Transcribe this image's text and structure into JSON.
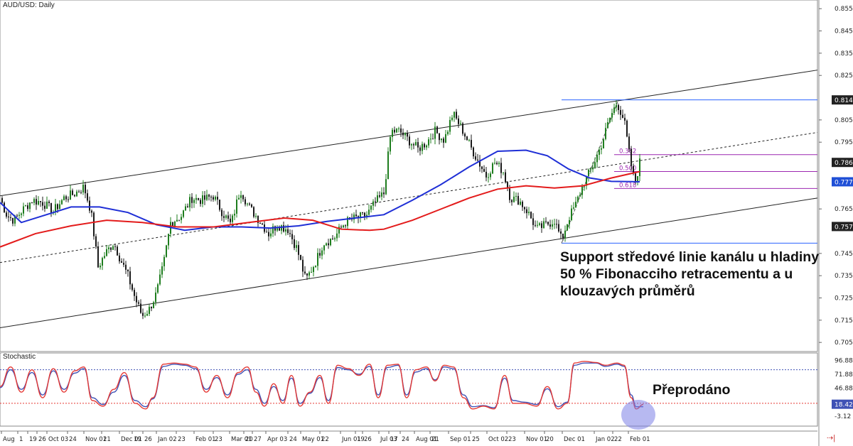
{
  "chart_data": {
    "type": "candlestick",
    "title": "AUD/USD: Daily",
    "symbol": "AUD/USD",
    "timeframe": "Daily",
    "price_axis": {
      "ticks": [
        "0.8551",
        "0.8451",
        "0.8351",
        "0.8251",
        "0.8051",
        "0.7951",
        "0.7651",
        "0.7451",
        "0.7351",
        "0.7251",
        "0.7151",
        "0.7051"
      ],
      "labels": [
        {
          "text": "0.8141",
          "style": "dark"
        },
        {
          "text": "0.7860",
          "style": "dark"
        },
        {
          "text": "0.7773",
          "style": "blue"
        },
        {
          "text": "0.7572",
          "style": "dark"
        }
      ]
    },
    "time_axis": [
      "Aug",
      "1",
      "19",
      "26",
      "Oct 03",
      "24",
      "Nov 01",
      "21",
      "Dec 01",
      "19",
      "26",
      "Jan 02",
      "23",
      "Feb 01",
      "23",
      "Mar 01",
      "20",
      "27",
      "Apr 03",
      "24",
      "May 01",
      "22",
      "Jun 01",
      "19",
      "26",
      "Jul 03",
      "17",
      "24",
      "Aug 01",
      "21",
      "Sep 01",
      "25",
      "Oct 02",
      "23",
      "Nov 01",
      "20",
      "Dec 01",
      "Jan 02",
      "22",
      "Feb 01"
    ],
    "channel": {
      "upper": [
        [
          0,
          0.771
        ],
        [
          1150,
          0.8275
        ]
      ],
      "middle": [
        [
          0,
          0.741
        ],
        [
          1150,
          0.7995
        ]
      ],
      "lower": [
        [
          0,
          0.7117
        ],
        [
          1150,
          0.77
        ]
      ]
    },
    "horizontal_lines": [
      {
        "from_index": 790,
        "to_index": 1150,
        "price": 0.8141,
        "color": "#2962ff"
      },
      {
        "from_index": 790,
        "to_index": 1150,
        "price": 0.7497,
        "color": "#2962ff"
      }
    ],
    "fibonacci": {
      "swing_low": {
        "index": 790,
        "price": 0.7497
      },
      "swing_high": {
        "index": 870,
        "price": 0.8141
      },
      "levels": [
        {
          "label": "0.382",
          "price": 0.7895
        },
        {
          "label": "0.500",
          "price": 0.7819
        },
        {
          "label": "0.618",
          "price": 0.7743
        }
      ]
    },
    "moving_averages": [
      {
        "color": "#1f2fd6",
        "points": [
          [
            0,
            0.768
          ],
          [
            30,
            0.759
          ],
          [
            60,
            0.762
          ],
          [
            100,
            0.766
          ],
          [
            140,
            0.766
          ],
          [
            180,
            0.7635
          ],
          [
            220,
            0.758
          ],
          [
            260,
            0.7555
          ],
          [
            300,
            0.757
          ],
          [
            340,
            0.757
          ],
          [
            380,
            0.7565
          ],
          [
            420,
            0.7575
          ],
          [
            460,
            0.7595
          ],
          [
            500,
            0.761
          ],
          [
            540,
            0.7625
          ],
          [
            580,
            0.769
          ],
          [
            620,
            0.776
          ],
          [
            660,
            0.784
          ],
          [
            700,
            0.791
          ],
          [
            740,
            0.7915
          ],
          [
            770,
            0.789
          ],
          [
            800,
            0.783
          ],
          [
            830,
            0.779
          ],
          [
            860,
            0.7775
          ],
          [
            900,
            0.7773
          ]
        ]
      },
      {
        "color": "#e31b1b",
        "points": [
          [
            0,
            0.748
          ],
          [
            50,
            0.754
          ],
          [
            100,
            0.7575
          ],
          [
            150,
            0.76
          ],
          [
            200,
            0.759
          ],
          [
            250,
            0.757
          ],
          [
            300,
            0.757
          ],
          [
            350,
            0.759
          ],
          [
            400,
            0.761
          ],
          [
            440,
            0.76
          ],
          [
            480,
            0.756
          ],
          [
            520,
            0.7555
          ],
          [
            540,
            0.756
          ],
          [
            580,
            0.76
          ],
          [
            620,
            0.765
          ],
          [
            660,
            0.77
          ],
          [
            700,
            0.774
          ],
          [
            740,
            0.7755
          ],
          [
            780,
            0.7745
          ],
          [
            820,
            0.7755
          ],
          [
            860,
            0.779
          ],
          [
            900,
            0.7819
          ]
        ]
      }
    ],
    "candles": [
      [
        0,
        0.77
      ],
      [
        10,
        0.762
      ],
      [
        20,
        0.76
      ],
      [
        30,
        0.764
      ],
      [
        45,
        0.769
      ],
      [
        60,
        0.768
      ],
      [
        75,
        0.764
      ],
      [
        90,
        0.77
      ],
      [
        105,
        0.772
      ],
      [
        118,
        0.775
      ],
      [
        128,
        0.764
      ],
      [
        138,
        0.739
      ],
      [
        148,
        0.745
      ],
      [
        160,
        0.75
      ],
      [
        170,
        0.742
      ],
      [
        180,
        0.735
      ],
      [
        190,
        0.725
      ],
      [
        200,
        0.717
      ],
      [
        210,
        0.72
      ],
      [
        220,
        0.727
      ],
      [
        230,
        0.74
      ],
      [
        240,
        0.759
      ],
      [
        255,
        0.762
      ],
      [
        270,
        0.77
      ],
      [
        285,
        0.769
      ],
      [
        300,
        0.771
      ],
      [
        312,
        0.764
      ],
      [
        325,
        0.758
      ],
      [
        338,
        0.774
      ],
      [
        350,
        0.766
      ],
      [
        365,
        0.76
      ],
      [
        378,
        0.754
      ],
      [
        390,
        0.758
      ],
      [
        405,
        0.756
      ],
      [
        418,
        0.747
      ],
      [
        430,
        0.733
      ],
      [
        445,
        0.742
      ],
      [
        455,
        0.75
      ],
      [
        470,
        0.752
      ],
      [
        485,
        0.759
      ],
      [
        500,
        0.761
      ],
      [
        515,
        0.762
      ],
      [
        528,
        0.768
      ],
      [
        540,
        0.772
      ],
      [
        550,
        0.8
      ],
      [
        562,
        0.8
      ],
      [
        575,
        0.796
      ],
      [
        588,
        0.792
      ],
      [
        600,
        0.795
      ],
      [
        612,
        0.8
      ],
      [
        625,
        0.796
      ],
      [
        637,
        0.808
      ],
      [
        650,
        0.801
      ],
      [
        662,
        0.793
      ],
      [
        672,
        0.787
      ],
      [
        684,
        0.78
      ],
      [
        696,
        0.786
      ],
      [
        708,
        0.782
      ],
      [
        718,
        0.77
      ],
      [
        730,
        0.769
      ],
      [
        742,
        0.764
      ],
      [
        755,
        0.756
      ],
      [
        768,
        0.758
      ],
      [
        780,
        0.76
      ],
      [
        790,
        0.751
      ],
      [
        800,
        0.761
      ],
      [
        810,
        0.767
      ],
      [
        820,
        0.776
      ],
      [
        832,
        0.783
      ],
      [
        845,
        0.793
      ],
      [
        858,
        0.806
      ],
      [
        868,
        0.813
      ],
      [
        878,
        0.805
      ],
      [
        886,
        0.788
      ],
      [
        893,
        0.776
      ],
      [
        900,
        0.786
      ]
    ],
    "stochastic": {
      "title": "Stochastic",
      "ticks": [
        "96.88",
        "71.88",
        "46.88",
        "-3.12"
      ],
      "labels": [
        {
          "text": "18.42",
          "style": "blue"
        }
      ],
      "upper_level": 80,
      "lower_level": 20,
      "k": [
        [
          0,
          50
        ],
        [
          15,
          85
        ],
        [
          30,
          40
        ],
        [
          45,
          80
        ],
        [
          60,
          30
        ],
        [
          75,
          82
        ],
        [
          90,
          40
        ],
        [
          105,
          78
        ],
        [
          118,
          85
        ],
        [
          130,
          25
        ],
        [
          145,
          15
        ],
        [
          160,
          45
        ],
        [
          175,
          75
        ],
        [
          190,
          20
        ],
        [
          205,
          10
        ],
        [
          215,
          30
        ],
        [
          230,
          90
        ],
        [
          245,
          92
        ],
        [
          260,
          90
        ],
        [
          275,
          85
        ],
        [
          290,
          40
        ],
        [
          305,
          70
        ],
        [
          320,
          30
        ],
        [
          335,
          75
        ],
        [
          348,
          85
        ],
        [
          360,
          40
        ],
        [
          372,
          15
        ],
        [
          385,
          55
        ],
        [
          398,
          20
        ],
        [
          410,
          70
        ],
        [
          422,
          15
        ],
        [
          436,
          40
        ],
        [
          450,
          70
        ],
        [
          462,
          20
        ],
        [
          475,
          88
        ],
        [
          490,
          82
        ],
        [
          505,
          70
        ],
        [
          520,
          90
        ],
        [
          532,
          30
        ],
        [
          545,
          88
        ],
        [
          560,
          90
        ],
        [
          572,
          30
        ],
        [
          585,
          80
        ],
        [
          600,
          85
        ],
        [
          612,
          60
        ],
        [
          625,
          88
        ],
        [
          638,
          85
        ],
        [
          652,
          30
        ],
        [
          665,
          10
        ],
        [
          680,
          15
        ],
        [
          695,
          10
        ],
        [
          710,
          70
        ],
        [
          722,
          20
        ],
        [
          738,
          20
        ],
        [
          755,
          15
        ],
        [
          770,
          50
        ],
        [
          785,
          10
        ],
        [
          798,
          20
        ],
        [
          808,
          92
        ],
        [
          822,
          95
        ],
        [
          838,
          93
        ],
        [
          852,
          88
        ],
        [
          868,
          92
        ],
        [
          878,
          88
        ],
        [
          888,
          30
        ],
        [
          895,
          10
        ],
        [
          905,
          18
        ]
      ],
      "d": [
        [
          0,
          48
        ],
        [
          15,
          80
        ],
        [
          30,
          45
        ],
        [
          45,
          75
        ],
        [
          60,
          35
        ],
        [
          75,
          78
        ],
        [
          90,
          45
        ],
        [
          105,
          74
        ],
        [
          118,
          82
        ],
        [
          130,
          30
        ],
        [
          145,
          18
        ],
        [
          160,
          40
        ],
        [
          175,
          70
        ],
        [
          190,
          25
        ],
        [
          205,
          14
        ],
        [
          215,
          28
        ],
        [
          230,
          86
        ],
        [
          245,
          90
        ],
        [
          260,
          88
        ],
        [
          275,
          82
        ],
        [
          290,
          45
        ],
        [
          305,
          66
        ],
        [
          320,
          35
        ],
        [
          335,
          72
        ],
        [
          348,
          80
        ],
        [
          360,
          45
        ],
        [
          372,
          20
        ],
        [
          385,
          50
        ],
        [
          398,
          25
        ],
        [
          410,
          65
        ],
        [
          422,
          20
        ],
        [
          436,
          38
        ],
        [
          450,
          66
        ],
        [
          462,
          25
        ],
        [
          475,
          84
        ],
        [
          490,
          80
        ],
        [
          505,
          72
        ],
        [
          520,
          86
        ],
        [
          532,
          35
        ],
        [
          545,
          84
        ],
        [
          560,
          88
        ],
        [
          572,
          35
        ],
        [
          585,
          76
        ],
        [
          600,
          82
        ],
        [
          612,
          62
        ],
        [
          625,
          85
        ],
        [
          638,
          82
        ],
        [
          652,
          35
        ],
        [
          665,
          14
        ],
        [
          680,
          16
        ],
        [
          695,
          12
        ],
        [
          710,
          65
        ],
        [
          722,
          25
        ],
        [
          738,
          22
        ],
        [
          755,
          18
        ],
        [
          770,
          46
        ],
        [
          785,
          14
        ],
        [
          798,
          22
        ],
        [
          808,
          88
        ],
        [
          822,
          92
        ],
        [
          838,
          92
        ],
        [
          852,
          86
        ],
        [
          868,
          90
        ],
        [
          878,
          86
        ],
        [
          888,
          35
        ],
        [
          895,
          14
        ],
        [
          905,
          14
        ]
      ]
    },
    "annotations": {
      "main": "Support středové linie kanálu u hladiny 50 % Fibonacciho retracementu a u klouzavých průměrů",
      "oscillator": "Přeprodáno"
    },
    "colors": {
      "bull": "#1e7d1e",
      "bear": "#1a1a1a",
      "channel": "#222222",
      "fib": "#9c27b0",
      "stoch_k": "#e53935",
      "stoch_d": "#3f51b5",
      "highlight": "#7b7fe6"
    }
  }
}
